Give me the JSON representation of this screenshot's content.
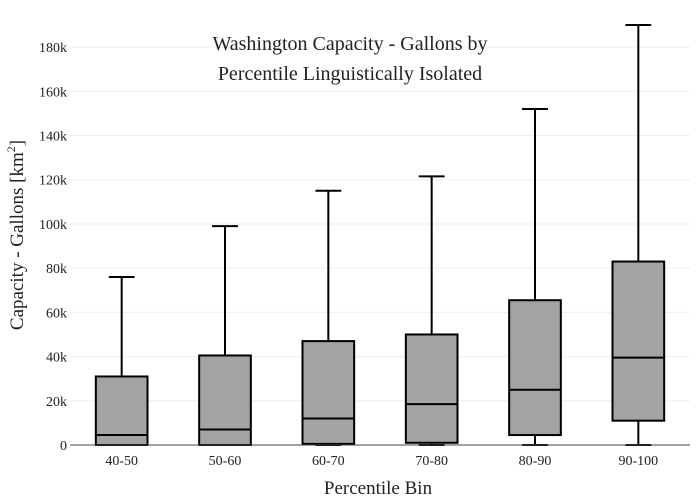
{
  "chart_data": {
    "type": "box",
    "title_lines": [
      "Washington Capacity - Gallons by",
      "Percentile Linguistically Isolated"
    ],
    "xlabel": "Percentile Bin",
    "ylabel": "Capacity - Gallons  [km",
    "ylabel_superscript": "2",
    "ylabel_suffix": "]",
    "ylim": [
      0,
      190000
    ],
    "y_ticks": [
      0,
      20000,
      40000,
      60000,
      80000,
      100000,
      120000,
      140000,
      160000,
      180000
    ],
    "y_tick_labels": [
      "0",
      "20k",
      "40k",
      "60k",
      "80k",
      "100k",
      "120k",
      "140k",
      "160k",
      "180k"
    ],
    "grid": true,
    "box_color": "#a3a3a3",
    "categories": [
      "40-50",
      "50-60",
      "60-70",
      "70-80",
      "80-90",
      "90-100"
    ],
    "boxes": [
      {
        "min": 0,
        "q1": 0,
        "median": 4500,
        "q3": 31000,
        "max": 76000
      },
      {
        "min": 0,
        "q1": 0,
        "median": 7000,
        "q3": 40500,
        "max": 99000
      },
      {
        "min": 0,
        "q1": 500,
        "median": 12000,
        "q3": 47000,
        "max": 115000
      },
      {
        "min": 0,
        "q1": 1000,
        "median": 18500,
        "q3": 50000,
        "max": 121500
      },
      {
        "min": 0,
        "q1": 4500,
        "median": 25000,
        "q3": 65500,
        "max": 152000
      },
      {
        "min": 0,
        "q1": 11000,
        "median": 39500,
        "q3": 83000,
        "max": 190000
      }
    ]
  }
}
